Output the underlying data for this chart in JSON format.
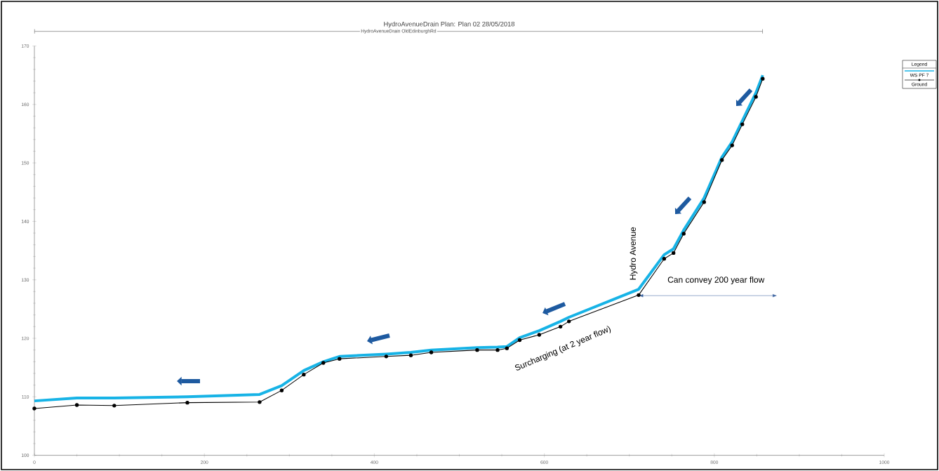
{
  "chart_data": {
    "type": "line",
    "title": "HydroAvenueDrain      Plan: Plan 02    28/05/2018",
    "x": [
      0,
      50,
      94,
      180,
      265,
      291,
      317,
      340,
      359,
      414,
      443,
      467,
      521,
      545,
      556,
      571,
      594,
      619,
      629,
      711,
      741,
      752,
      764,
      788,
      809,
      821,
      833,
      849,
      857
    ],
    "series": [
      {
        "name": "WS  PF 7",
        "color": "#17b3e6",
        "marker": "none",
        "values": [
          109.3,
          109.8,
          109.8,
          110.0,
          110.4,
          111.9,
          114.5,
          116.0,
          116.9,
          117.3,
          117.6,
          118.0,
          118.4,
          118.5,
          118.6,
          120.1,
          121.3,
          122.9,
          123.6,
          128.4,
          134.3,
          135.3,
          138.5,
          144.0,
          151.0,
          153.6,
          157.2,
          162.0,
          165.0
        ]
      },
      {
        "name": "Ground",
        "color": "#000000",
        "marker": "circle",
        "values": [
          108.0,
          108.6,
          108.5,
          109.0,
          109.1,
          111.1,
          113.8,
          115.8,
          116.5,
          116.9,
          117.1,
          117.6,
          118.0,
          118.0,
          118.3,
          119.7,
          120.6,
          122.0,
          122.9,
          127.4,
          133.6,
          134.6,
          137.9,
          143.3,
          150.5,
          153.0,
          156.6,
          161.3,
          164.4
        ]
      }
    ],
    "xlim": [
      0,
      1000
    ],
    "ylim": [
      100,
      170
    ],
    "xticks": [
      0,
      200,
      400,
      600,
      800,
      1000
    ],
    "yticks": [
      100,
      110,
      120,
      130,
      140,
      150,
      160,
      170
    ],
    "legend": "top right",
    "legend_title": "Legend",
    "grid": false,
    "annotations": [
      "HydroAvenueDrain OldEdinburghRd",
      "Hydro Avenue",
      "Can convey 200 year flow",
      "Surcharging (at 2 year flow)"
    ]
  }
}
